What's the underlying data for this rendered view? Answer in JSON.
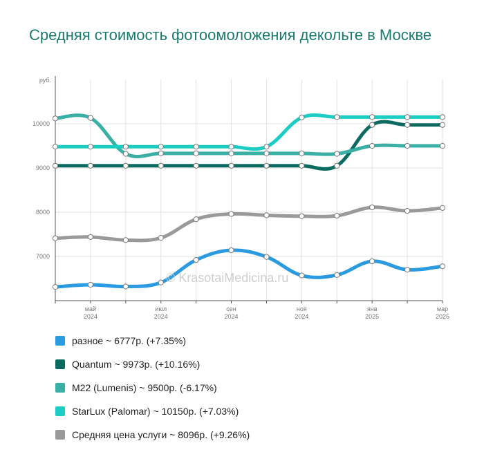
{
  "title": "Средняя стоимость фотоомоложения декольте в Москве",
  "watermark": "© KrasotaiMedicina.ru",
  "chart_data": {
    "type": "line",
    "title": "Средняя стоимость фотоомоложения декольте в Москве",
    "yunit": "руб.",
    "ylim": [
      6000,
      11000
    ],
    "yticks": [
      7000,
      8000,
      9000,
      10000
    ],
    "grid": true,
    "legend_position": "bottom",
    "x": [
      "2024-04",
      "2024-05",
      "2024-06",
      "2024-07",
      "2024-08",
      "2024-09",
      "2024-10",
      "2024-11",
      "2024-12",
      "2025-01",
      "2025-02",
      "2025-03"
    ],
    "x_tick_labels": [
      {
        "index": 1,
        "month": "май",
        "year": "2024"
      },
      {
        "index": 3,
        "month": "июл",
        "year": "2024"
      },
      {
        "index": 5,
        "month": "сен",
        "year": "2024"
      },
      {
        "index": 7,
        "month": "ноя",
        "year": "2024"
      },
      {
        "index": 9,
        "month": "янв",
        "year": "2025"
      },
      {
        "index": 11,
        "month": "мар",
        "year": "2025"
      }
    ],
    "series": [
      {
        "name": "разное",
        "legend": "разное ~ 6777р. (+7.35%)",
        "color": "#2a9be0",
        "values": [
          6310,
          6360,
          6320,
          6410,
          6920,
          7140,
          6990,
          6570,
          6580,
          6890,
          6700,
          6777
        ]
      },
      {
        "name": "Quantum",
        "legend": "Quantum ~ 9973р. (+10.16%)",
        "color": "#0b6b60",
        "values": [
          9050,
          9050,
          9050,
          9050,
          9050,
          9050,
          9050,
          9050,
          9050,
          9973,
          9973,
          9973
        ]
      },
      {
        "name": "M22 (Lumenis)",
        "legend": "M22 (Lumenis) ~ 9500р. (-6.17%)",
        "color": "#3aafa5",
        "values": [
          10120,
          10130,
          9320,
          9330,
          9330,
          9330,
          9330,
          9330,
          9320,
          9500,
          9500,
          9500
        ]
      },
      {
        "name": "StarLux (Palomar)",
        "legend": "StarLux (Palomar) ~ 10150р. (+7.03%)",
        "color": "#1ccdc4",
        "values": [
          9480,
          9480,
          9480,
          9480,
          9480,
          9480,
          9480,
          10140,
          10150,
          10150,
          10150,
          10150
        ]
      },
      {
        "name": "Средняя цена услуги",
        "legend": "Средняя цена услуги ~ 8096р. (+9.26%)",
        "color": "#9a9a9a",
        "values": [
          7410,
          7440,
          7370,
          7420,
          7840,
          7960,
          7930,
          7910,
          7920,
          8110,
          8030,
          8096
        ]
      }
    ]
  }
}
